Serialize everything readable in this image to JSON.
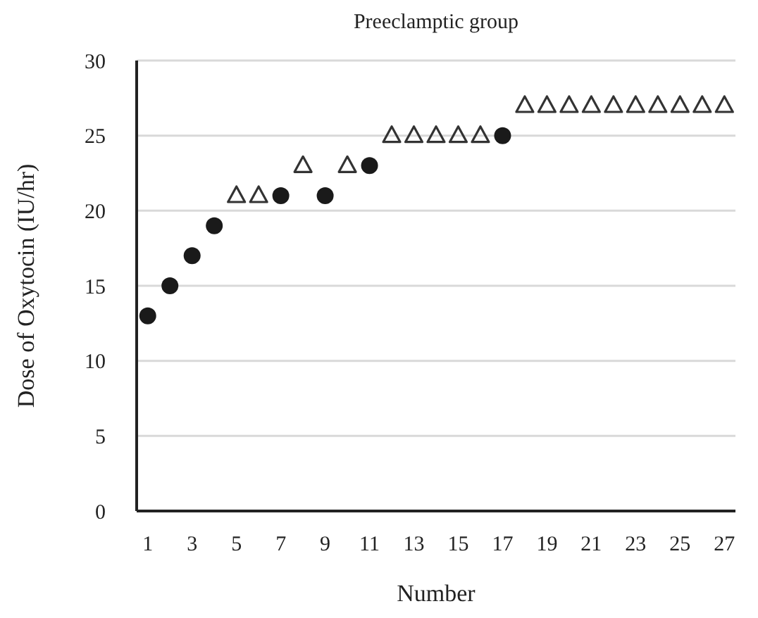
{
  "chart_data": {
    "type": "scatter",
    "title": "Preeclamptic group",
    "xlabel": "Number",
    "ylabel": "Dose of Oxytocin (IU/hr)",
    "xlim": [
      0.5,
      27.5
    ],
    "xticks": [
      1,
      3,
      5,
      7,
      9,
      11,
      13,
      15,
      17,
      19,
      21,
      23,
      25,
      27
    ],
    "ylim": [
      0,
      30
    ],
    "yticks": [
      0,
      5,
      10,
      15,
      20,
      25,
      30
    ],
    "grid": "y",
    "series": [
      {
        "color": "#1a1a1a",
        "marker": "circle",
        "x": [
          1,
          2,
          3,
          4,
          7,
          9,
          11,
          17
        ],
        "values": [
          13,
          15,
          17,
          19,
          21,
          21,
          23,
          25
        ]
      },
      {
        "color": "#333333",
        "marker": "triangle",
        "x": [
          5,
          6,
          8,
          10,
          12,
          13,
          14,
          15,
          16,
          18,
          19,
          20,
          21,
          22,
          23,
          24,
          25,
          26,
          27
        ],
        "values": [
          21,
          21,
          23,
          23,
          25,
          25,
          25,
          25,
          25,
          27,
          27,
          27,
          27,
          27,
          27,
          27,
          27,
          27,
          27
        ]
      }
    ]
  }
}
